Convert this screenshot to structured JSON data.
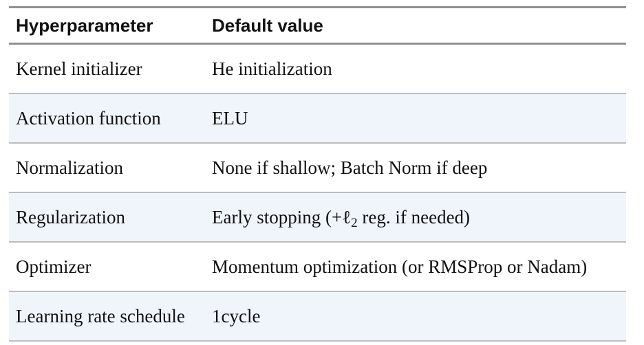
{
  "header": {
    "col1": "Hyperparameter",
    "col2": "Default value"
  },
  "rows": [
    {
      "param": "Kernel initializer",
      "value": "He initialization"
    },
    {
      "param": "Activation function",
      "value": "ELU"
    },
    {
      "param": "Normalization",
      "value": "None if shallow; Batch Norm if deep"
    },
    {
      "param": "Regularization",
      "value_prefix": "Early stopping (+ℓ",
      "value_sub": "2",
      "value_suffix": " reg. if needed)"
    },
    {
      "param": "Optimizer",
      "value": "Momentum optimization (or RMSProp or Nadam)"
    },
    {
      "param": "Learning rate schedule",
      "value": "1cycle"
    }
  ],
  "colors": {
    "rule_heavy": "#8f8f8f",
    "rule_light": "#bdbdbd",
    "alt_row_bg": "#f0f4fb"
  }
}
